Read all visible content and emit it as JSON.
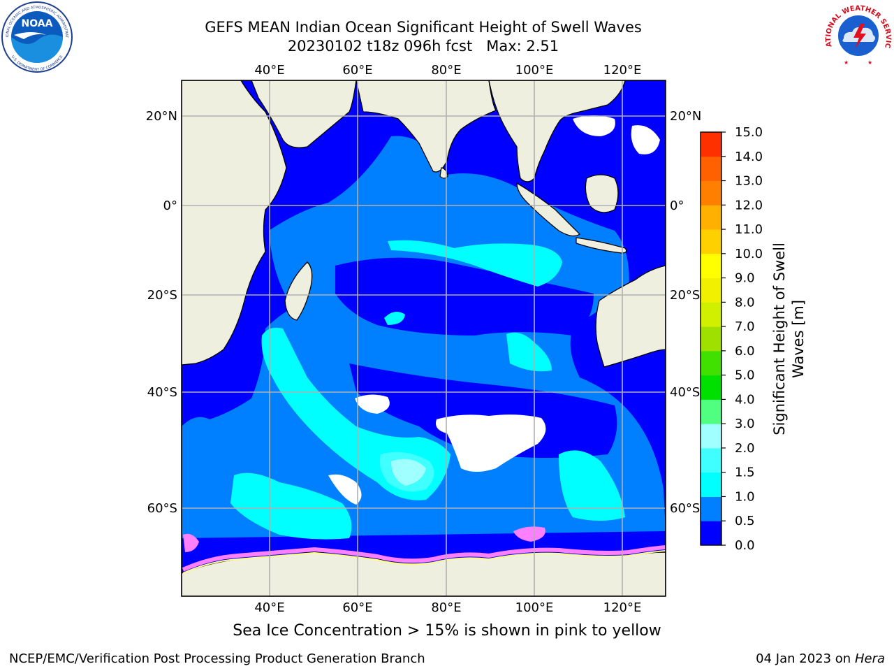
{
  "title": {
    "line1": "GEFS MEAN Indian Ocean Significant Height of Swell Waves",
    "line2": "20230102 t18z 096h fcst   Max: 2.51"
  },
  "map": {
    "lon_labels": [
      "40°E",
      "60°E",
      "80°E",
      "100°E",
      "120°E"
    ],
    "lat_labels": [
      "20°N",
      "0°",
      "20°S",
      "40°S",
      "60°S"
    ],
    "land_color": "#efefdf",
    "ocean_base_color": "#0000ff",
    "ice_colors": [
      "#ff80ff",
      "#ffa0c0",
      "#ffff80"
    ]
  },
  "colorbar": {
    "label_line1": "Significant Height of Swell",
    "label_line2": "Waves [m]",
    "ticks": [
      "0.0",
      "0.5",
      "1.0",
      "1.5",
      "2.0",
      "3.0",
      "4.0",
      "5.0",
      "6.0",
      "7.0",
      "8.0",
      "9.0",
      "10.0",
      "11.0",
      "12.0",
      "13.0",
      "14.0",
      "15.0"
    ],
    "colors": [
      "#0000ff",
      "#0080ff",
      "#00ffff",
      "#40ffff",
      "#a0ffff",
      "#50ff80",
      "#00e000",
      "#40e000",
      "#a0e000",
      "#d0f000",
      "#f0f000",
      "#ffff00",
      "#ffd000",
      "#ffb000",
      "#ff8000",
      "#ff6000",
      "#ff3000"
    ]
  },
  "chart_data": {
    "type": "heatmap",
    "variable": "Significant Height of Swell Waves [m]",
    "max_value": 2.51,
    "levels": [
      0.0,
      0.5,
      1.0,
      1.5,
      2.0,
      3.0,
      4.0,
      5.0,
      6.0,
      7.0,
      8.0,
      9.0,
      10.0,
      11.0,
      12.0,
      13.0,
      14.0,
      15.0
    ],
    "lon_range": [
      20,
      130
    ],
    "lat_range": [
      -72,
      28
    ]
  },
  "caption": "Sea Ice Concentration > 15% is shown in pink to yellow",
  "footer": {
    "left": "NCEP/EMC/Verification Post Processing Product Generation Branch",
    "date": "04 Jan 2023 on",
    "host": "Hera"
  },
  "logos": {
    "noaa_text": "NOAA",
    "noaa_ring_top": "NATIONAL OCEANIC AND ATMOSPHERIC ADMINISTRATION",
    "noaa_ring_bottom": "U.S. DEPARTMENT OF COMMERCE",
    "nws_ring": "NATIONAL WEATHER SERVICE"
  }
}
